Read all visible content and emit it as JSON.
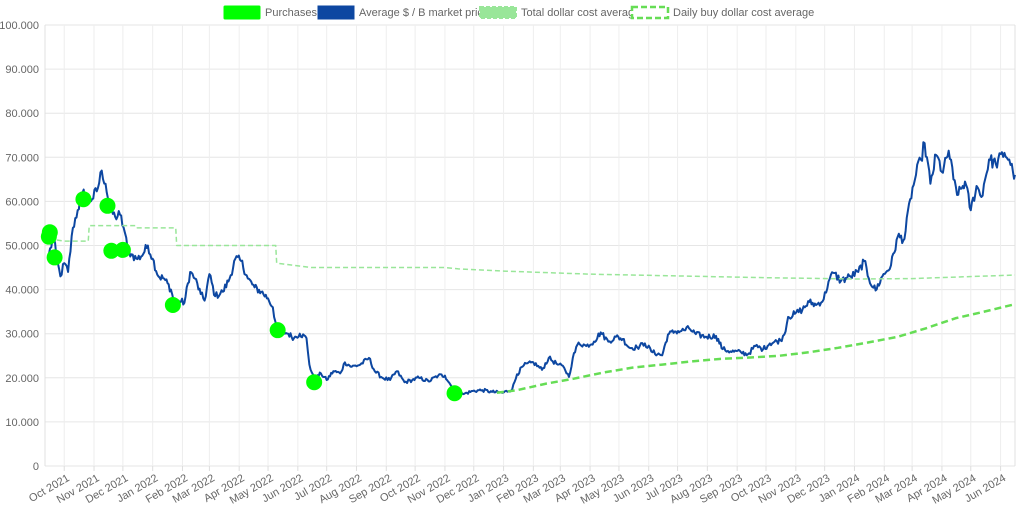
{
  "chart_data": {
    "type": "line",
    "title": "",
    "xlabel": "",
    "ylabel": "",
    "ylim": [
      0,
      100000
    ],
    "grid": true,
    "legend_position": "top",
    "y_ticks": [
      "0",
      "10.000",
      "20.000",
      "30.000",
      "40.000",
      "50.000",
      "60.000",
      "70.000",
      "80.000",
      "90.000",
      "100.000"
    ],
    "x_ticks": [
      "Oct 2021",
      "Nov 2021",
      "Dec 2021",
      "Jan 2022",
      "Feb 2022",
      "Mar 2022",
      "Apr 2022",
      "May 2022",
      "Jun 2022",
      "Jul 2022",
      "Aug 2022",
      "Sep 2022",
      "Oct 2022",
      "Nov 2022",
      "Dec 2022",
      "Jan 2023",
      "Feb 2023",
      "Mar 2023",
      "Apr 2023",
      "May 2023",
      "Jun 2023",
      "Jul 2023",
      "Aug 2023",
      "Sep 2023",
      "Oct 2023",
      "Nov 2023",
      "Dec 2023",
      "Jan 2024",
      "Feb 2024",
      "Mar 2024",
      "Apr 2024",
      "May 2024",
      "Jun 2024"
    ],
    "legend": [
      {
        "label": "Purchases",
        "color": "#00ff00",
        "style": "point"
      },
      {
        "label": "Average $ / B market price",
        "color": "#0d47a1",
        "style": "line"
      },
      {
        "label": "Total dollar cost average",
        "color": "#99e699",
        "style": "dashed-thin"
      },
      {
        "label": "Daily buy dollar cost average",
        "color": "#66dd55",
        "style": "dashed"
      }
    ],
    "series": [
      {
        "name": "Average $ / B market price",
        "color": "#0d47a1",
        "points": [
          [
            "2021-09-15",
            48000
          ],
          [
            "2021-09-20",
            52000
          ],
          [
            "2021-09-23",
            47000
          ],
          [
            "2021-09-27",
            43000
          ],
          [
            "2021-10-01",
            46000
          ],
          [
            "2021-10-05",
            44000
          ],
          [
            "2021-10-10",
            54000
          ],
          [
            "2021-10-15",
            58000
          ],
          [
            "2021-10-20",
            62000
          ],
          [
            "2021-10-25",
            61000
          ],
          [
            "2021-10-30",
            60500
          ],
          [
            "2021-11-05",
            63000
          ],
          [
            "2021-11-09",
            67000
          ],
          [
            "2021-11-13",
            64000
          ],
          [
            "2021-11-18",
            58000
          ],
          [
            "2021-11-23",
            56500
          ],
          [
            "2021-11-28",
            57000
          ],
          [
            "2021-12-03",
            53000
          ],
          [
            "2021-12-06",
            49000
          ],
          [
            "2021-12-10",
            48000
          ],
          [
            "2021-12-15",
            47000
          ],
          [
            "2021-12-20",
            47500
          ],
          [
            "2021-12-27",
            50000
          ],
          [
            "2022-01-01",
            47000
          ],
          [
            "2022-01-07",
            43000
          ],
          [
            "2022-01-13",
            42500
          ],
          [
            "2022-01-20",
            40000
          ],
          [
            "2022-01-24",
            36500
          ],
          [
            "2022-01-28",
            37500
          ],
          [
            "2022-02-03",
            37000
          ],
          [
            "2022-02-09",
            44000
          ],
          [
            "2022-02-14",
            42500
          ],
          [
            "2022-02-20",
            39000
          ],
          [
            "2022-02-24",
            37500
          ],
          [
            "2022-03-01",
            43500
          ],
          [
            "2022-03-07",
            38500
          ],
          [
            "2022-03-15",
            39500
          ],
          [
            "2022-03-22",
            42500
          ],
          [
            "2022-03-28",
            47000
          ],
          [
            "2022-04-03",
            46500
          ],
          [
            "2022-04-10",
            42500
          ],
          [
            "2022-04-17",
            40500
          ],
          [
            "2022-04-24",
            39500
          ],
          [
            "2022-05-01",
            38000
          ],
          [
            "2022-05-06",
            36000
          ],
          [
            "2022-05-10",
            31000
          ],
          [
            "2022-05-15",
            30500
          ],
          [
            "2022-05-22",
            30000
          ],
          [
            "2022-05-28",
            29000
          ],
          [
            "2022-06-03",
            30000
          ],
          [
            "2022-06-10",
            29000
          ],
          [
            "2022-06-13",
            23000
          ],
          [
            "2022-06-18",
            19500
          ],
          [
            "2022-06-25",
            21000
          ],
          [
            "2022-07-01",
            19500
          ],
          [
            "2022-07-08",
            21500
          ],
          [
            "2022-07-15",
            21000
          ],
          [
            "2022-07-20",
            23500
          ],
          [
            "2022-07-27",
            22500
          ],
          [
            "2022-08-05",
            23000
          ],
          [
            "2022-08-14",
            24500
          ],
          [
            "2022-08-20",
            21500
          ],
          [
            "2022-08-28",
            20000
          ],
          [
            "2022-09-05",
            19500
          ],
          [
            "2022-09-12",
            21500
          ],
          [
            "2022-09-20",
            19000
          ],
          [
            "2022-09-28",
            19500
          ],
          [
            "2022-10-05",
            20000
          ],
          [
            "2022-10-15",
            19200
          ],
          [
            "2022-10-25",
            20500
          ],
          [
            "2022-11-01",
            20500
          ],
          [
            "2022-11-08",
            18000
          ],
          [
            "2022-11-10",
            16500
          ],
          [
            "2022-11-20",
            16300
          ],
          [
            "2022-11-30",
            17000
          ],
          [
            "2022-12-10",
            17200
          ],
          [
            "2022-12-20",
            16800
          ],
          [
            "2022-12-31",
            16600
          ],
          [
            "2023-01-10",
            17400
          ],
          [
            "2023-01-15",
            20800
          ],
          [
            "2023-01-22",
            22800
          ],
          [
            "2023-02-01",
            23500
          ],
          [
            "2023-02-10",
            21800
          ],
          [
            "2023-02-17",
            24500
          ],
          [
            "2023-02-25",
            23200
          ],
          [
            "2023-03-05",
            22300
          ],
          [
            "2023-03-10",
            20200
          ],
          [
            "2023-03-14",
            24500
          ],
          [
            "2023-03-20",
            28000
          ],
          [
            "2023-03-28",
            27200
          ],
          [
            "2023-04-05",
            28200
          ],
          [
            "2023-04-12",
            30300
          ],
          [
            "2023-04-20",
            28200
          ],
          [
            "2023-04-28",
            29300
          ],
          [
            "2023-05-05",
            28800
          ],
          [
            "2023-05-12",
            26800
          ],
          [
            "2023-05-20",
            26900
          ],
          [
            "2023-05-28",
            27800
          ],
          [
            "2023-06-05",
            25800
          ],
          [
            "2023-06-15",
            25100
          ],
          [
            "2023-06-21",
            29800
          ],
          [
            "2023-06-28",
            30500
          ],
          [
            "2023-07-05",
            30600
          ],
          [
            "2023-07-13",
            31200
          ],
          [
            "2023-07-20",
            29900
          ],
          [
            "2023-07-30",
            29300
          ],
          [
            "2023-08-10",
            29500
          ],
          [
            "2023-08-17",
            26500
          ],
          [
            "2023-08-25",
            26000
          ],
          [
            "2023-09-05",
            25800
          ],
          [
            "2023-09-12",
            25300
          ],
          [
            "2023-09-20",
            27200
          ],
          [
            "2023-09-28",
            26500
          ],
          [
            "2023-10-05",
            27800
          ],
          [
            "2023-10-16",
            28500
          ],
          [
            "2023-10-20",
            29800
          ],
          [
            "2023-10-24",
            33800
          ],
          [
            "2023-10-31",
            34500
          ],
          [
            "2023-11-08",
            35500
          ],
          [
            "2023-11-15",
            37200
          ],
          [
            "2023-11-22",
            36500
          ],
          [
            "2023-11-30",
            37800
          ],
          [
            "2023-12-05",
            41800
          ],
          [
            "2023-12-10",
            43800
          ],
          [
            "2023-12-18",
            42000
          ],
          [
            "2023-12-28",
            43000
          ],
          [
            "2024-01-05",
            44000
          ],
          [
            "2024-01-11",
            46500
          ],
          [
            "2024-01-16",
            42500
          ],
          [
            "2024-01-23",
            39800
          ],
          [
            "2024-01-30",
            43000
          ],
          [
            "2024-02-08",
            45500
          ],
          [
            "2024-02-15",
            52000
          ],
          [
            "2024-02-22",
            51500
          ],
          [
            "2024-02-28",
            60500
          ],
          [
            "2024-03-05",
            66000
          ],
          [
            "2024-03-10",
            69500
          ],
          [
            "2024-03-14",
            73200
          ],
          [
            "2024-03-20",
            64000
          ],
          [
            "2024-03-26",
            70500
          ],
          [
            "2024-04-02",
            66500
          ],
          [
            "2024-04-08",
            71500
          ],
          [
            "2024-04-13",
            65000
          ],
          [
            "2024-04-18",
            61500
          ],
          [
            "2024-04-25",
            64500
          ],
          [
            "2024-05-01",
            58000
          ],
          [
            "2024-05-07",
            63500
          ],
          [
            "2024-05-12",
            61000
          ],
          [
            "2024-05-20",
            69500
          ],
          [
            "2024-05-27",
            68500
          ],
          [
            "2024-06-05",
            71000
          ],
          [
            "2024-06-10",
            69500
          ],
          [
            "2024-06-14",
            66500
          ],
          [
            "2024-06-16",
            66000
          ]
        ]
      },
      {
        "name": "Total dollar cost average",
        "color": "#99e699",
        "points": [
          [
            "2021-09-15",
            51500
          ],
          [
            "2021-10-01",
            51000
          ],
          [
            "2021-10-26",
            51000
          ],
          [
            "2021-10-27",
            54500
          ],
          [
            "2021-12-15",
            54500
          ],
          [
            "2021-12-16",
            54000
          ],
          [
            "2022-01-25",
            54000
          ],
          [
            "2022-01-26",
            50000
          ],
          [
            "2022-05-09",
            50000
          ],
          [
            "2022-05-10",
            46000
          ],
          [
            "2022-06-15",
            45000
          ],
          [
            "2022-11-01",
            45000
          ],
          [
            "2022-11-15",
            44700
          ],
          [
            "2023-01-01",
            44200
          ],
          [
            "2023-04-01",
            43500
          ],
          [
            "2023-07-01",
            43100
          ],
          [
            "2023-10-01",
            42700
          ],
          [
            "2024-01-01",
            42400
          ],
          [
            "2024-03-01",
            42500
          ],
          [
            "2024-06-16",
            43300
          ]
        ]
      },
      {
        "name": "Daily buy dollar cost average",
        "color": "#66dd55",
        "points": [
          [
            "2022-12-25",
            16600
          ],
          [
            "2023-01-15",
            17200
          ],
          [
            "2023-02-15",
            18700
          ],
          [
            "2023-03-15",
            19800
          ],
          [
            "2023-04-15",
            21200
          ],
          [
            "2023-05-15",
            22300
          ],
          [
            "2023-06-15",
            23000
          ],
          [
            "2023-07-15",
            23700
          ],
          [
            "2023-08-15",
            24300
          ],
          [
            "2023-09-15",
            24600
          ],
          [
            "2023-10-15",
            25000
          ],
          [
            "2023-11-15",
            25800
          ],
          [
            "2023-12-15",
            26800
          ],
          [
            "2024-01-15",
            28000
          ],
          [
            "2024-02-15",
            29300
          ],
          [
            "2024-03-15",
            31200
          ],
          [
            "2024-04-15",
            33500
          ],
          [
            "2024-05-15",
            35000
          ],
          [
            "2024-06-16",
            36700
          ]
        ]
      },
      {
        "name": "Purchases",
        "color": "#00ff00",
        "points": [
          [
            "2021-09-15",
            52000
          ],
          [
            "2021-09-16",
            53000
          ],
          [
            "2021-09-21",
            47300
          ],
          [
            "2021-10-21",
            60500
          ],
          [
            "2021-11-15",
            59000
          ],
          [
            "2021-11-19",
            48800
          ],
          [
            "2021-12-01",
            49000
          ],
          [
            "2022-01-22",
            36500
          ],
          [
            "2022-05-11",
            30800
          ],
          [
            "2022-06-18",
            19000
          ],
          [
            "2022-11-11",
            16500
          ]
        ]
      }
    ]
  }
}
